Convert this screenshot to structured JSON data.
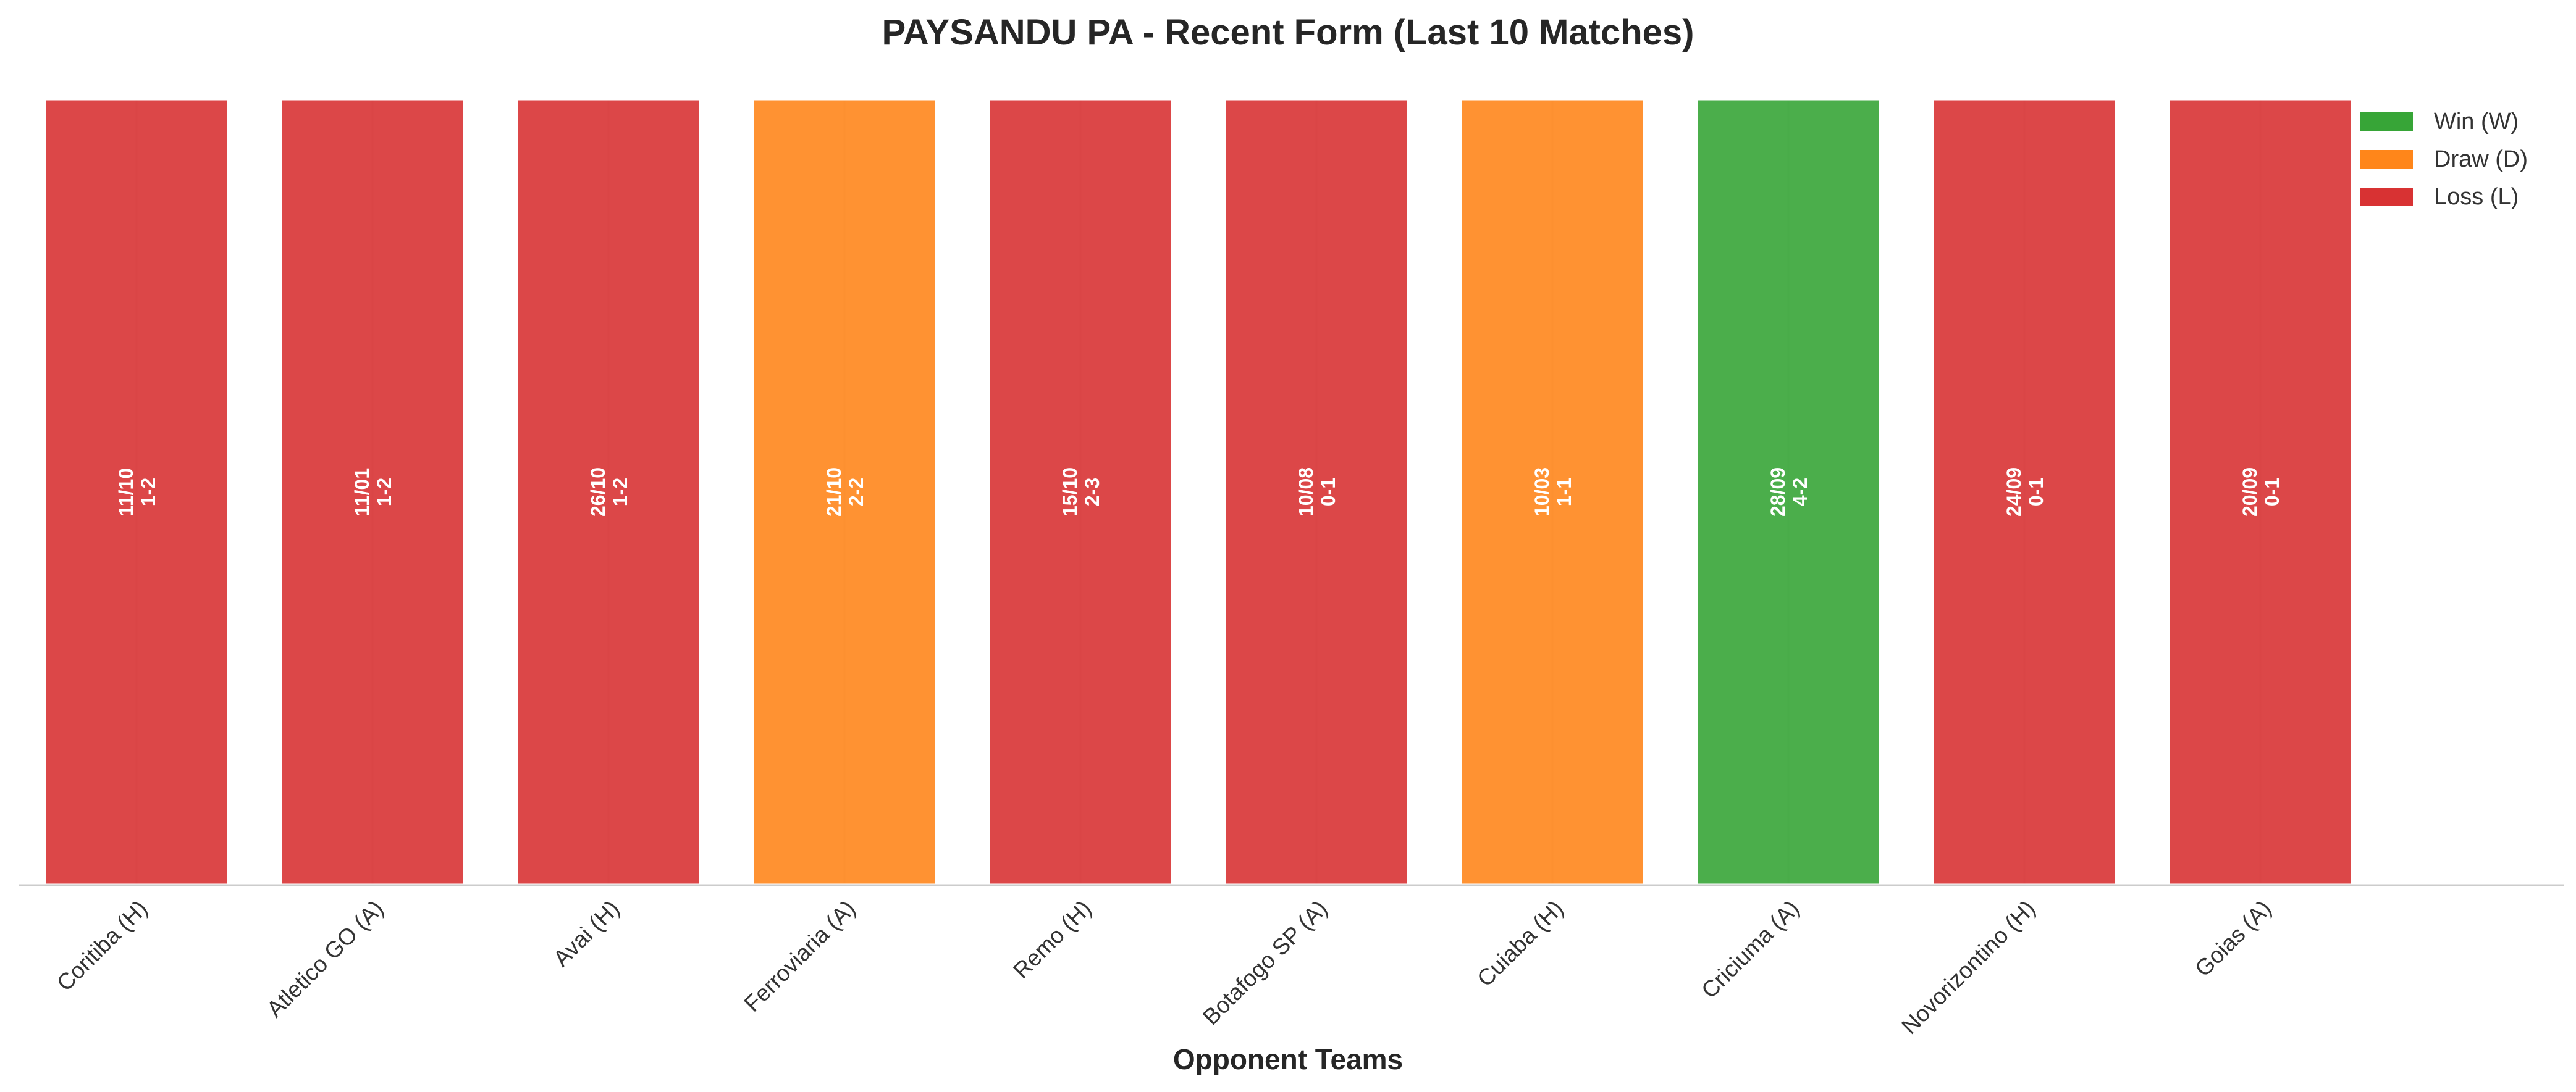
{
  "colors": {
    "W": "#2ca02c",
    "D": "#ff7f0e",
    "L": "#d62728"
  },
  "chart_data": {
    "type": "bar",
    "title": "PAYSANDU PA - Recent Form (Last 10 Matches)",
    "xlabel": "Opponent Teams",
    "ylabel": "",
    "grid": true,
    "legend_position": "top-right",
    "categories": [
      "Coritiba (H)",
      "Atletico GO (A)",
      "Avai (H)",
      "Ferroviaria (A)",
      "Remo (H)",
      "Botafogo SP (A)",
      "Cuiaba (H)",
      "Criciuma (A)",
      "Novorizontino (H)",
      "Goias (A)"
    ],
    "values": [
      1,
      1,
      1,
      1,
      1,
      1,
      1,
      1,
      1,
      1
    ],
    "ylim": [
      0,
      1
    ],
    "results": [
      "L",
      "L",
      "L",
      "D",
      "L",
      "L",
      "D",
      "W",
      "L",
      "L"
    ],
    "dates": [
      "11/10",
      "11/01",
      "26/10",
      "21/10",
      "15/10",
      "10/08",
      "10/03",
      "28/09",
      "24/09",
      "20/09"
    ],
    "scores": [
      "1-2",
      "1-2",
      "1-2",
      "2-2",
      "2-3",
      "0-1",
      "1-1",
      "4-2",
      "0-1",
      "0-1"
    ],
    "legend": [
      {
        "key": "W",
        "label": "Win (W)"
      },
      {
        "key": "D",
        "label": "Draw (D)"
      },
      {
        "key": "L",
        "label": "Loss (L)"
      }
    ]
  }
}
